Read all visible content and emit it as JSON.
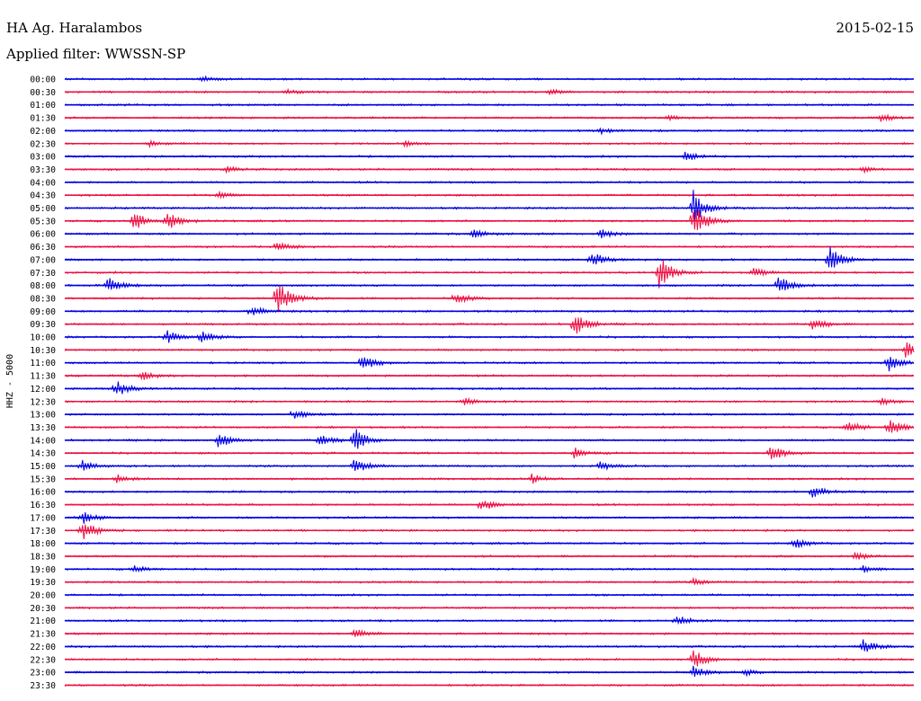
{
  "header": {
    "station": "HA Ag. Haralambos",
    "date": "2015-02-15",
    "filter": "Applied filter: WWSSN-SP"
  },
  "chart_data": {
    "type": "helicorder",
    "title": "HA Ag. Haralambos",
    "date": "2015-02-15",
    "filter": "WWSSN-SP",
    "ylabel": "HHZ - 5000",
    "xlabel": "",
    "trace_colors": [
      "#0000e6",
      "#ee1144"
    ],
    "grid": false,
    "rows": [
      {
        "time": "00:00",
        "events": [
          {
            "x": 0.16,
            "a": 3
          }
        ]
      },
      {
        "time": "00:30",
        "events": [
          {
            "x": 0.26,
            "a": 3
          },
          {
            "x": 0.57,
            "a": 3
          }
        ]
      },
      {
        "time": "01:00",
        "events": []
      },
      {
        "time": "01:30",
        "events": [
          {
            "x": 0.71,
            "a": 3
          },
          {
            "x": 0.96,
            "a": 5
          }
        ]
      },
      {
        "time": "02:00",
        "events": [
          {
            "x": 0.63,
            "a": 3
          }
        ]
      },
      {
        "time": "02:30",
        "events": [
          {
            "x": 0.1,
            "a": 3
          },
          {
            "x": 0.4,
            "a": 3
          }
        ]
      },
      {
        "time": "03:00",
        "events": [
          {
            "x": 0.73,
            "a": 6
          }
        ]
      },
      {
        "time": "03:30",
        "events": [
          {
            "x": 0.19,
            "a": 3
          },
          {
            "x": 0.94,
            "a": 3
          }
        ]
      },
      {
        "time": "04:00",
        "events": []
      },
      {
        "time": "04:30",
        "events": [
          {
            "x": 0.18,
            "a": 4
          }
        ]
      },
      {
        "time": "05:00",
        "events": [
          {
            "x": 0.74,
            "a": 20
          }
        ]
      },
      {
        "time": "05:30",
        "events": [
          {
            "x": 0.08,
            "a": 12
          },
          {
            "x": 0.12,
            "a": 11
          },
          {
            "x": 0.74,
            "a": 22
          }
        ]
      },
      {
        "time": "06:00",
        "events": [
          {
            "x": 0.48,
            "a": 6
          },
          {
            "x": 0.63,
            "a": 6
          }
        ]
      },
      {
        "time": "06:30",
        "events": [
          {
            "x": 0.25,
            "a": 6
          }
        ]
      },
      {
        "time": "07:00",
        "events": [
          {
            "x": 0.62,
            "a": 9
          },
          {
            "x": 0.9,
            "a": 16
          }
        ]
      },
      {
        "time": "07:30",
        "events": [
          {
            "x": 0.7,
            "a": 20
          },
          {
            "x": 0.81,
            "a": 7
          }
        ]
      },
      {
        "time": "08:00",
        "events": [
          {
            "x": 0.05,
            "a": 10
          },
          {
            "x": 0.84,
            "a": 12
          }
        ]
      },
      {
        "time": "08:30",
        "events": [
          {
            "x": 0.25,
            "a": 24
          },
          {
            "x": 0.46,
            "a": 7
          }
        ]
      },
      {
        "time": "09:00",
        "events": [
          {
            "x": 0.22,
            "a": 6
          }
        ]
      },
      {
        "time": "09:30",
        "events": [
          {
            "x": 0.6,
            "a": 14
          },
          {
            "x": 0.88,
            "a": 8
          }
        ]
      },
      {
        "time": "10:00",
        "events": [
          {
            "x": 0.12,
            "a": 9
          },
          {
            "x": 0.16,
            "a": 8
          }
        ]
      },
      {
        "time": "10:30",
        "events": [
          {
            "x": 0.99,
            "a": 9
          }
        ]
      },
      {
        "time": "11:00",
        "events": [
          {
            "x": 0.35,
            "a": 11
          },
          {
            "x": 0.97,
            "a": 10
          }
        ]
      },
      {
        "time": "11:30",
        "events": [
          {
            "x": 0.09,
            "a": 6
          }
        ]
      },
      {
        "time": "12:00",
        "events": [
          {
            "x": 0.06,
            "a": 10
          }
        ]
      },
      {
        "time": "12:30",
        "events": [
          {
            "x": 0.47,
            "a": 4
          },
          {
            "x": 0.96,
            "a": 5
          }
        ]
      },
      {
        "time": "13:00",
        "events": [
          {
            "x": 0.27,
            "a": 6
          }
        ]
      },
      {
        "time": "13:30",
        "events": [
          {
            "x": 0.92,
            "a": 8
          },
          {
            "x": 0.97,
            "a": 11
          }
        ]
      },
      {
        "time": "14:00",
        "events": [
          {
            "x": 0.18,
            "a": 10
          },
          {
            "x": 0.3,
            "a": 8
          },
          {
            "x": 0.34,
            "a": 16
          }
        ]
      },
      {
        "time": "14:30",
        "events": [
          {
            "x": 0.6,
            "a": 6
          },
          {
            "x": 0.83,
            "a": 12
          }
        ]
      },
      {
        "time": "15:00",
        "events": [
          {
            "x": 0.02,
            "a": 6
          },
          {
            "x": 0.34,
            "a": 11
          },
          {
            "x": 0.63,
            "a": 6
          }
        ]
      },
      {
        "time": "15:30",
        "events": [
          {
            "x": 0.06,
            "a": 5
          },
          {
            "x": 0.55,
            "a": 5
          }
        ]
      },
      {
        "time": "16:00",
        "events": [
          {
            "x": 0.88,
            "a": 8
          }
        ]
      },
      {
        "time": "16:30",
        "events": [
          {
            "x": 0.49,
            "a": 8
          }
        ]
      },
      {
        "time": "17:00",
        "events": [
          {
            "x": 0.02,
            "a": 8
          }
        ]
      },
      {
        "time": "17:30",
        "events": [
          {
            "x": 0.02,
            "a": 14
          }
        ]
      },
      {
        "time": "18:00",
        "events": [
          {
            "x": 0.86,
            "a": 6
          }
        ]
      },
      {
        "time": "18:30",
        "events": [
          {
            "x": 0.93,
            "a": 5
          }
        ]
      },
      {
        "time": "19:00",
        "events": [
          {
            "x": 0.08,
            "a": 4
          },
          {
            "x": 0.94,
            "a": 4
          }
        ]
      },
      {
        "time": "19:30",
        "events": [
          {
            "x": 0.74,
            "a": 4
          }
        ]
      },
      {
        "time": "20:00",
        "events": []
      },
      {
        "time": "20:30",
        "events": []
      },
      {
        "time": "21:00",
        "events": [
          {
            "x": 0.72,
            "a": 6
          }
        ]
      },
      {
        "time": "21:30",
        "events": [
          {
            "x": 0.34,
            "a": 6
          }
        ]
      },
      {
        "time": "22:00",
        "events": [
          {
            "x": 0.94,
            "a": 8
          }
        ]
      },
      {
        "time": "22:30",
        "events": [
          {
            "x": 0.74,
            "a": 12
          }
        ]
      },
      {
        "time": "23:00",
        "events": [
          {
            "x": 0.74,
            "a": 8
          },
          {
            "x": 0.8,
            "a": 4
          }
        ]
      },
      {
        "time": "23:30",
        "events": []
      }
    ]
  }
}
